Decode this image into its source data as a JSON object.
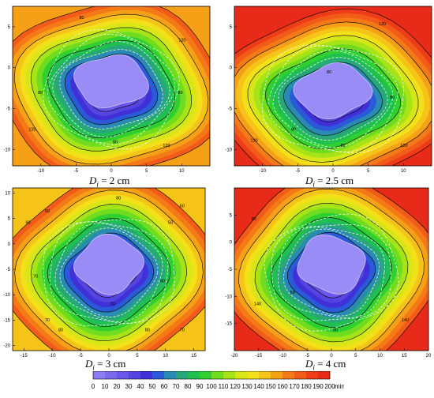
{
  "chart_data": [
    {
      "type": "heatmap",
      "caption": {
        "symbol": "D",
        "subscript": "i",
        "value": "= 2 cm"
      },
      "xticks": [
        "-10",
        "-5",
        "0",
        "5",
        "10"
      ],
      "yticks": [
        "5",
        "0",
        "-5",
        "-10"
      ],
      "xlim": [
        -14,
        14
      ],
      "ylim": [
        -12,
        7.5
      ],
      "contour_labels": [
        "80",
        "120",
        "120",
        "80",
        "80",
        "80",
        "120"
      ]
    },
    {
      "type": "heatmap",
      "caption": {
        "symbol": "D",
        "subscript": "i",
        "value": "= 2.5 cm"
      },
      "xticks": [
        "-10",
        "-5",
        "0",
        "5",
        "10"
      ],
      "yticks": [
        "5",
        "0",
        "-5",
        "-10"
      ],
      "xlim": [
        -14,
        14
      ],
      "ylim": [
        -12,
        7.5
      ],
      "contour_labels": [
        "120",
        "80",
        "120",
        "80",
        "80",
        "80",
        "120"
      ]
    },
    {
      "type": "heatmap",
      "caption": {
        "symbol": "D",
        "subscript": "i",
        "value": "= 3 cm"
      },
      "xticks": [
        "-15",
        "-10",
        "-5",
        "0",
        "5",
        "10",
        "15"
      ],
      "yticks": [
        "10",
        "5",
        "0",
        "-5",
        "-10",
        "-15",
        "-20"
      ],
      "xlim": [
        -17,
        17
      ],
      "ylim": [
        -21,
        11
      ],
      "contour_labels": [
        "80",
        "50",
        "60",
        "70",
        "50",
        "60",
        "80",
        "70",
        "10",
        "60",
        "80",
        "70"
      ]
    },
    {
      "type": "heatmap",
      "caption": {
        "symbol": "D",
        "subscript": "i",
        "value": "= 4 cm"
      },
      "xticks": [
        "-20",
        "-15",
        "-10",
        "-5",
        "0",
        "5",
        "10",
        "15",
        "20"
      ],
      "yticks": [
        "5",
        "0",
        "-5",
        "-10",
        "-15"
      ],
      "xlim": [
        -20,
        20
      ],
      "ylim": [
        -20,
        10
      ],
      "contour_labels": [
        "90",
        "140",
        "60",
        "90",
        "140"
      ]
    }
  ],
  "colorbar": {
    "ticks": [
      "0",
      "10",
      "20",
      "30",
      "40",
      "50",
      "60",
      "70",
      "80",
      "90",
      "100",
      "110",
      "120",
      "130",
      "140",
      "150",
      "160",
      "170",
      "180",
      "190",
      "200"
    ],
    "unit": "min",
    "colors": [
      "#8c7cf2",
      "#7a6aec",
      "#6a56e8",
      "#5644e0",
      "#4030d8",
      "#2a5ad8",
      "#2a8ab4",
      "#28a878",
      "#20c050",
      "#30d030",
      "#70dc20",
      "#a6e418",
      "#d6e618",
      "#f2e018",
      "#f6c418",
      "#f6a018",
      "#f47a18",
      "#f25c18",
      "#ee3c18",
      "#e82a18"
    ]
  }
}
